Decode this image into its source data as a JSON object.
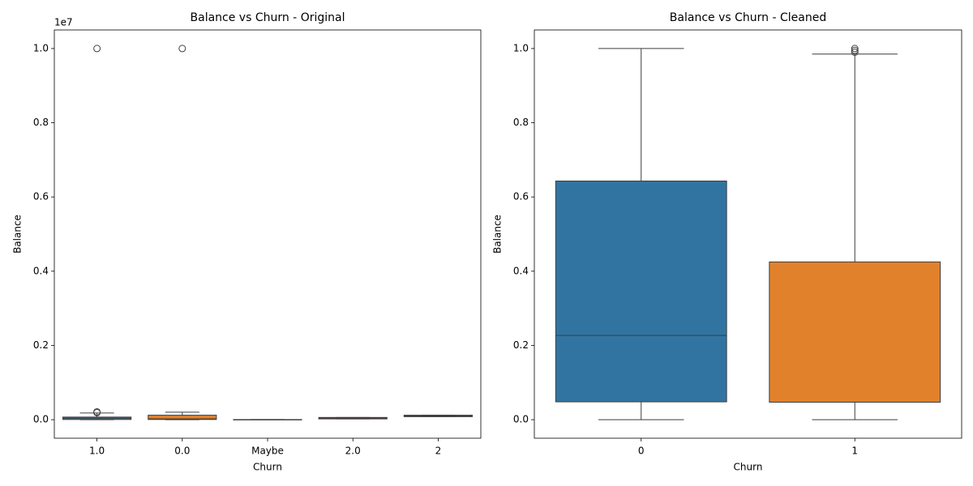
{
  "chart_data": [
    {
      "type": "box",
      "title": "Balance vs Churn - Original",
      "x_label": "Churn",
      "y_label": "Balance",
      "offset_label": "1e7",
      "categories": [
        "1.0",
        "0.0",
        "Maybe",
        "2.0",
        "2"
      ],
      "colors": [
        "#3274a1",
        "#e1812c",
        "#3a923a",
        "#c03d3e",
        "#9372b2"
      ],
      "boxes": [
        {
          "whislo": 0,
          "q1": 0.0005,
          "med": 0.004,
          "q3": 0.007,
          "whishi": 0.018,
          "fliers": [
            0.019,
            0.021,
            1.0
          ]
        },
        {
          "whislo": 0,
          "q1": 0.0005,
          "med": 0.002,
          "q3": 0.012,
          "whishi": 0.02,
          "fliers": [
            1.0
          ]
        },
        {
          "whislo": 0,
          "q1": 0.0001,
          "med": 0.0002,
          "q3": 0.0003,
          "whishi": 0.0004,
          "fliers": []
        },
        {
          "whislo": 0.002,
          "q1": 0.002,
          "med": 0.004,
          "q3": 0.006,
          "whishi": 0.006,
          "fliers": []
        },
        {
          "whislo": 0.008,
          "q1": 0.008,
          "med": 0.01,
          "q3": 0.012,
          "whishi": 0.012,
          "fliers": []
        }
      ],
      "ylim": [
        -0.05,
        1.05
      ],
      "yticks": [
        {
          "value": 0,
          "label": "0.0"
        },
        {
          "value": 0.2,
          "label": "0.2"
        },
        {
          "value": 0.4,
          "label": "0.4"
        },
        {
          "value": 0.6,
          "label": "0.6"
        },
        {
          "value": 0.8,
          "label": "0.8"
        },
        {
          "value": 1,
          "label": "1.0"
        }
      ]
    },
    {
      "type": "box",
      "title": "Balance vs Churn - Cleaned",
      "x_label": "Churn",
      "y_label": "Balance",
      "categories": [
        "0",
        "1"
      ],
      "colors": [
        "#3274a1",
        "#e1812c"
      ],
      "boxes": [
        {
          "whislo": 0,
          "q1": 0.048,
          "med": 0.227,
          "q3": 0.643,
          "whishi": 1.0,
          "fliers": []
        },
        {
          "whislo": 0,
          "q1": 0.047,
          "med": 0.047,
          "q3": 0.425,
          "whishi": 0.985,
          "fliers": [
            0.99,
            0.995,
            1.0
          ]
        }
      ],
      "ylim": [
        -0.05,
        1.05
      ],
      "yticks": [
        {
          "value": 0,
          "label": "0.0"
        },
        {
          "value": 0.2,
          "label": "0.2"
        },
        {
          "value": 0.4,
          "label": "0.4"
        },
        {
          "value": 0.6,
          "label": "0.6"
        },
        {
          "value": 0.8,
          "label": "0.8"
        },
        {
          "value": 1,
          "label": "1.0"
        }
      ]
    }
  ]
}
